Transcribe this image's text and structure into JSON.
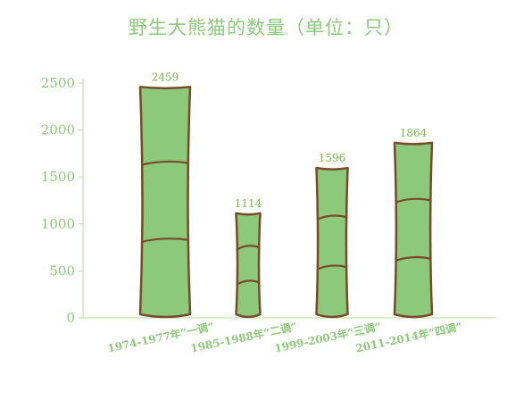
{
  "chart_data": {
    "type": "bar",
    "title": "野生大熊猫的数量（单位：只）",
    "categories": [
      "1974-1977年“一调”",
      "1985-1988年“二调”",
      "1999-2003年“三调”",
      "2011-2014年“四调”"
    ],
    "values": [
      2459,
      1114,
      1596,
      1864
    ],
    "yticks": [
      0,
      500,
      1000,
      1500,
      2000,
      2500
    ],
    "ylim": [
      0,
      2500
    ],
    "xlabel": "",
    "ylabel": "",
    "grid": false,
    "bar_style": "bamboo",
    "colors": {
      "bar_fill": "#8cc97a",
      "bar_outline": "#7a4a28",
      "text": "#8cc97a",
      "value_label": "#77b848",
      "axis": "#b7d9a4"
    }
  }
}
